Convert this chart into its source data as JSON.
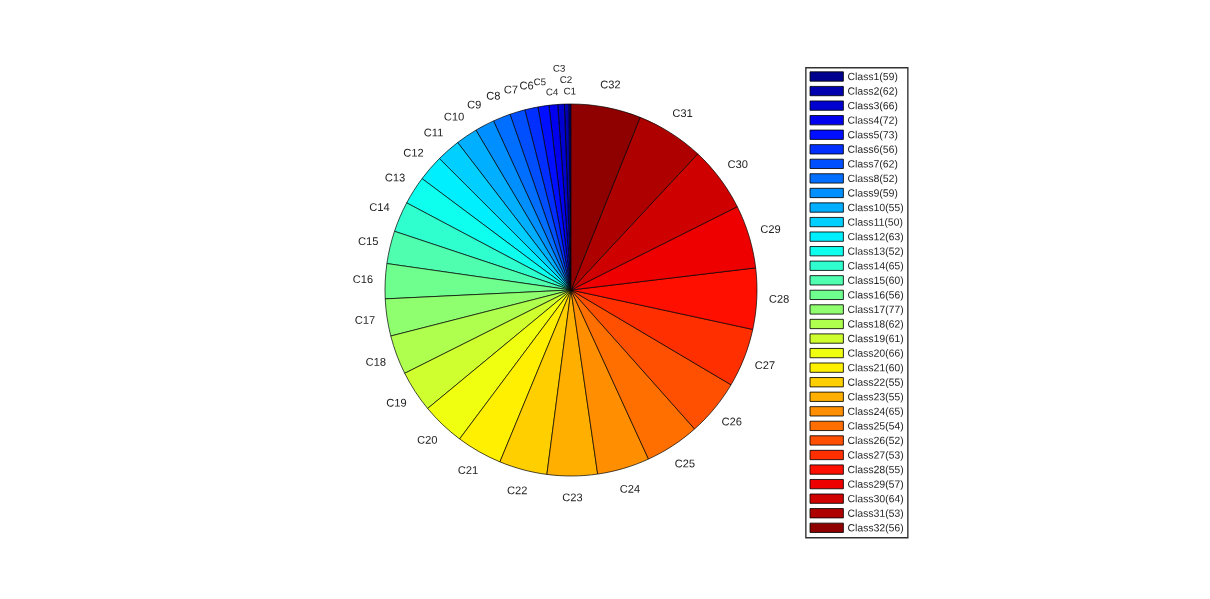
{
  "chart_data": {
    "type": "pie",
    "categories": [
      "Class1(59)",
      "Class2(62)",
      "Class3(66)",
      "Class4(72)",
      "Class5(73)",
      "Class6(56)",
      "Class7(62)",
      "Class8(52)",
      "Class9(59)",
      "Class10(55)",
      "Class11(50)",
      "Class12(63)",
      "Class13(52)",
      "Class14(65)",
      "Class15(60)",
      "Class16(56)",
      "Class17(77)",
      "Class18(62)",
      "Class19(61)",
      "Class20(66)",
      "Class21(60)",
      "Class22(55)",
      "Class23(55)",
      "Class24(65)",
      "Class25(54)",
      "Class26(52)",
      "Class27(53)",
      "Class28(55)",
      "Class29(57)",
      "Class30(64)",
      "Class31(53)",
      "Class32(56)"
    ],
    "value_labels": [
      "C1",
      "C2",
      "C3",
      "C4",
      "C5",
      "C6",
      "C7",
      "C8",
      "C9",
      "C10",
      "C11",
      "C12",
      "C13",
      "C14",
      "C15",
      "C16",
      "C17",
      "C18",
      "C19",
      "C20",
      "C21",
      "C22",
      "C23",
      "C24",
      "C25",
      "C26",
      "C27",
      "C28",
      "C29",
      "C30",
      "C31",
      "C32"
    ],
    "values": [
      0.19,
      0.38,
      0.57,
      0.76,
      0.95,
      1.14,
      1.33,
      1.52,
      1.7,
      1.89,
      2.08,
      2.27,
      2.46,
      2.65,
      2.84,
      3.03,
      3.22,
      3.41,
      3.6,
      3.79,
      3.98,
      4.17,
      4.36,
      4.55,
      4.73,
      4.92,
      5.11,
      5.3,
      5.49,
      5.68,
      5.87,
      6.06
    ],
    "colors": [
      "#00008f",
      "#0000af",
      "#0000cf",
      "#0000ef",
      "#000fff",
      "#002fff",
      "#004fff",
      "#006fff",
      "#008fff",
      "#00afff",
      "#00cfff",
      "#00efff",
      "#0fffef",
      "#2fffcf",
      "#4fffaf",
      "#6fff8f",
      "#8fff6f",
      "#afff4f",
      "#cfff2f",
      "#efff0f",
      "#ffef00",
      "#ffcf00",
      "#ffaf00",
      "#ff8f00",
      "#ff6f00",
      "#ff4f00",
      "#ff2f00",
      "#ff0f00",
      "#ef0000",
      "#cf0000",
      "#af0000",
      "#8f0000"
    ],
    "legend": "right"
  }
}
